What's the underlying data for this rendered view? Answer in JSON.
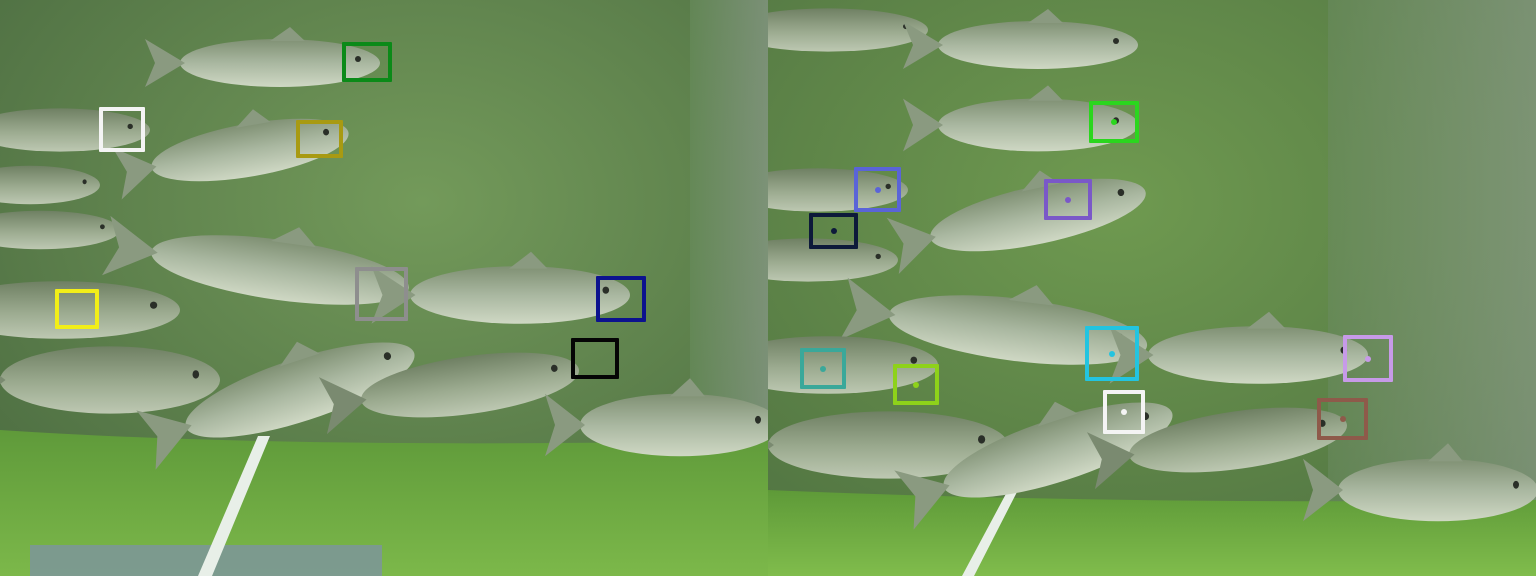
{
  "scene": {
    "colors": {
      "water": "#5f8a4c",
      "wall": "#6f8c68",
      "floor": "#5f9a3a",
      "fish_body": "#a9b7a0",
      "fish_belly": "#cfd8c4",
      "fish_back": "#7f9073",
      "pole": "#e8efe8",
      "mat": "#7d93a0"
    }
  },
  "left_panel": {
    "boxes": [
      {
        "id": "green",
        "color": "#0b8a18"
      },
      {
        "id": "white",
        "color": "#f4f4f4"
      },
      {
        "id": "olive",
        "color": "#a89a12"
      },
      {
        "id": "gray",
        "color": "#8e8e8e"
      },
      {
        "id": "yellow",
        "color": "#f2ee18"
      },
      {
        "id": "navy",
        "color": "#0c128e"
      },
      {
        "id": "black",
        "color": "#050505"
      }
    ]
  },
  "right_panel": {
    "boxes": [
      {
        "id": "lime",
        "color": "#2bd61e"
      },
      {
        "id": "slate-blue",
        "color": "#5a64d8"
      },
      {
        "id": "purple",
        "color": "#7a58c8"
      },
      {
        "id": "dark-navy",
        "color": "#0d1a3a"
      },
      {
        "id": "cyan",
        "color": "#23c4e0"
      },
      {
        "id": "teal",
        "color": "#3aa89a"
      },
      {
        "id": "yellow-green",
        "color": "#8ed21a"
      },
      {
        "id": "white",
        "color": "#f4f4f4"
      },
      {
        "id": "lavender",
        "color": "#c79ae8"
      },
      {
        "id": "brown",
        "color": "#8e5a4a"
      }
    ]
  }
}
